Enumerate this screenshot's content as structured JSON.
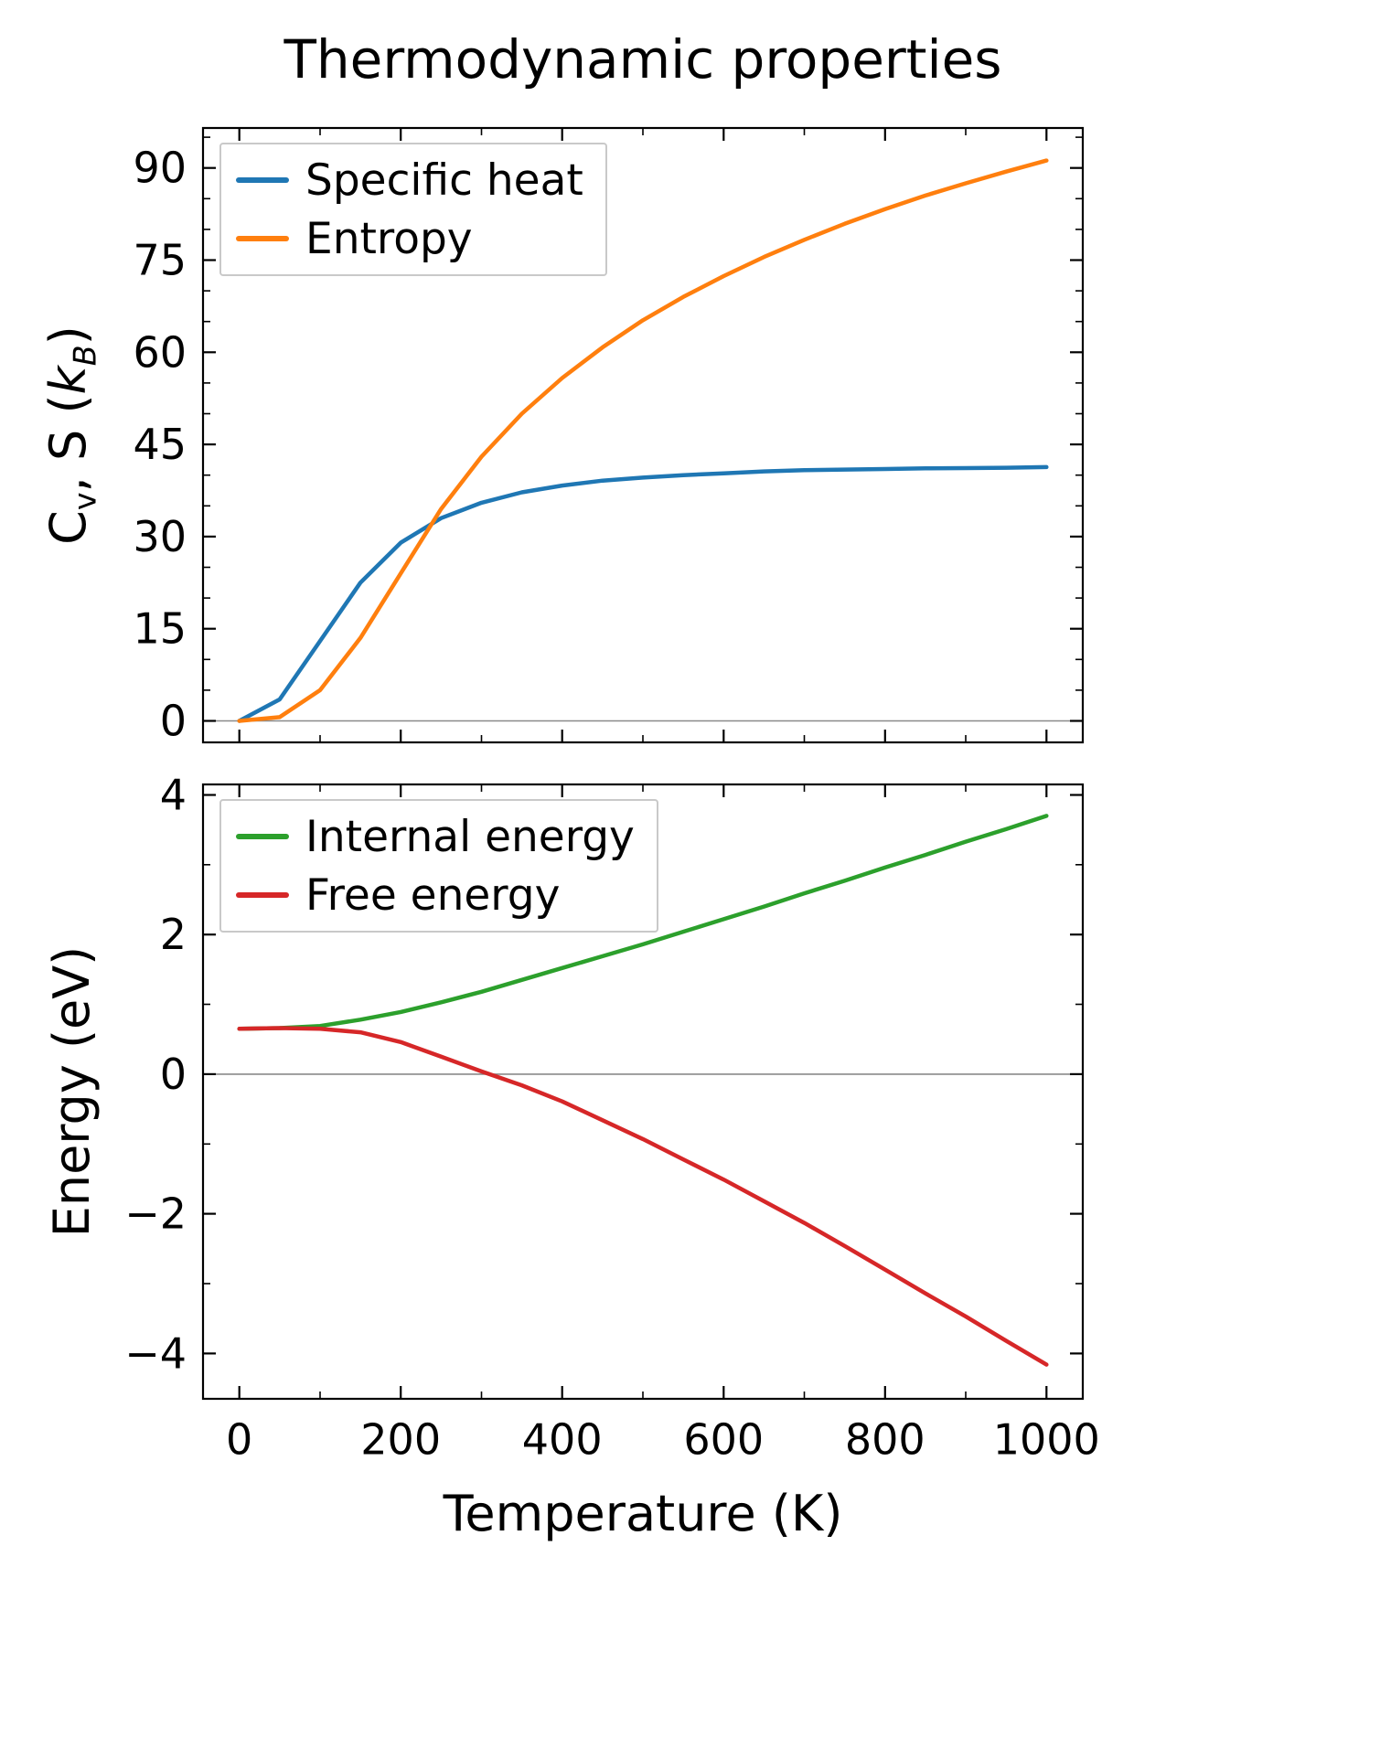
{
  "chart_data": [
    {
      "type": "line",
      "title": "Thermodynamic properties",
      "ylabel": "Cv, S (kB)",
      "ylabel_parts": [
        {
          "text": "C",
          "style": "normal"
        },
        {
          "text": "v",
          "style": "sub"
        },
        {
          "text": ", S (",
          "style": "normal"
        },
        {
          "text": "k",
          "style": "italic"
        },
        {
          "text": "B",
          "style": "subitalic"
        },
        {
          "text": ")",
          "style": "normal"
        }
      ],
      "xlim": [
        -45,
        1045
      ],
      "ylim": [
        -3.5,
        96.5
      ],
      "xticks": [
        0,
        200,
        400,
        600,
        800,
        1000
      ],
      "yticks": [
        0,
        15,
        30,
        45,
        60,
        75,
        90
      ],
      "x_minor_step": 100,
      "y_minor_step": 5,
      "show_xtick_labels": false,
      "zero_line": true,
      "grid": false,
      "legend_position": "upper left",
      "x": [
        0,
        50,
        100,
        150,
        200,
        250,
        300,
        350,
        400,
        450,
        500,
        550,
        600,
        650,
        700,
        750,
        800,
        850,
        900,
        950,
        1000
      ],
      "series": [
        {
          "name": "Specific heat",
          "color": "#1f77b4",
          "values": [
            0,
            3.5,
            13,
            22.5,
            29,
            33,
            35.5,
            37.2,
            38.3,
            39.1,
            39.6,
            40.0,
            40.3,
            40.6,
            40.8,
            40.9,
            41.0,
            41.1,
            41.15,
            41.2,
            41.3
          ]
        },
        {
          "name": "Entropy",
          "color": "#ff7f0e",
          "values": [
            0,
            0.6,
            5,
            13.5,
            24,
            34.5,
            43,
            50,
            55.8,
            60.8,
            65.2,
            69.0,
            72.4,
            75.5,
            78.3,
            80.9,
            83.3,
            85.5,
            87.5,
            89.4,
            91.2
          ]
        }
      ]
    },
    {
      "type": "line",
      "xlabel": "Temperature (K)",
      "ylabel": "Energy (eV)",
      "xlim": [
        -45,
        1045
      ],
      "ylim": [
        -4.65,
        4.15
      ],
      "xticks": [
        0,
        200,
        400,
        600,
        800,
        1000
      ],
      "yticks": [
        -4,
        -2,
        0,
        2,
        4
      ],
      "x_minor_step": 100,
      "y_minor_step": 1,
      "show_xtick_labels": true,
      "zero_line": true,
      "grid": false,
      "legend_position": "upper left",
      "x": [
        0,
        50,
        100,
        150,
        200,
        250,
        300,
        350,
        400,
        450,
        500,
        550,
        600,
        650,
        700,
        750,
        800,
        850,
        900,
        950,
        1000
      ],
      "series": [
        {
          "name": "Internal energy",
          "color": "#2ca02c",
          "values": [
            0.65,
            0.66,
            0.69,
            0.78,
            0.89,
            1.03,
            1.18,
            1.35,
            1.52,
            1.69,
            1.86,
            2.04,
            2.22,
            2.4,
            2.59,
            2.77,
            2.96,
            3.14,
            3.33,
            3.51,
            3.7
          ]
        },
        {
          "name": "Free energy",
          "color": "#d62728",
          "values": [
            0.65,
            0.66,
            0.65,
            0.6,
            0.46,
            0.25,
            0.04,
            -0.16,
            -0.39,
            -0.66,
            -0.93,
            -1.22,
            -1.51,
            -1.82,
            -2.13,
            -2.46,
            -2.8,
            -3.14,
            -3.47,
            -3.82,
            -4.16
          ]
        }
      ]
    }
  ],
  "style": {
    "spine_color": "#000000",
    "zero_line_color": "#8a8a8a",
    "legend_border_color": "#c9c9c9",
    "background": "#ffffff"
  }
}
